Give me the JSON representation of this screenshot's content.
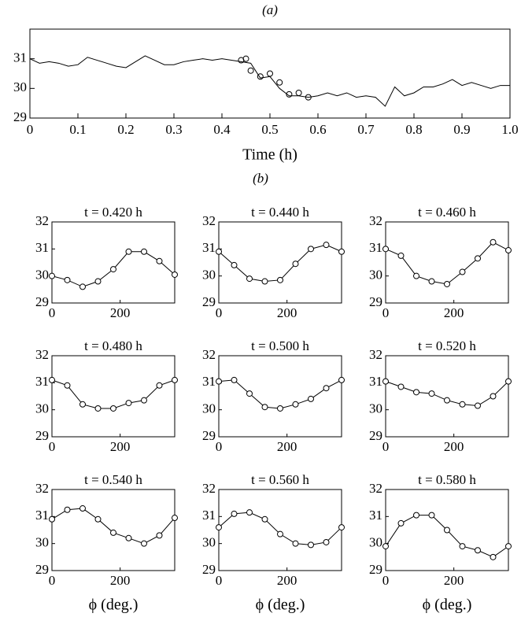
{
  "panel_label_b": "(b)",
  "chart_data": [
    {
      "type": "line",
      "title": "(a)",
      "xlabel": "Time (h)",
      "color": "#000000",
      "x": [
        0,
        0.02,
        0.04,
        0.06,
        0.08,
        0.1,
        0.12,
        0.14,
        0.16,
        0.18,
        0.2,
        0.22,
        0.24,
        0.26,
        0.28,
        0.3,
        0.32,
        0.34,
        0.36,
        0.38,
        0.4,
        0.42,
        0.44,
        0.46,
        0.48,
        0.5,
        0.52,
        0.54,
        0.56,
        0.58,
        0.6,
        0.62,
        0.64,
        0.66,
        0.68,
        0.7,
        0.72,
        0.74,
        0.76,
        0.78,
        0.8,
        0.82,
        0.84,
        0.86,
        0.88,
        0.9,
        0.92,
        0.94,
        0.96,
        0.98,
        1
      ],
      "values": [
        31.0,
        30.85,
        30.9,
        30.85,
        30.75,
        30.8,
        31.05,
        30.95,
        30.85,
        30.75,
        30.7,
        30.9,
        31.1,
        30.95,
        30.8,
        30.8,
        30.9,
        30.95,
        31.0,
        30.95,
        31.0,
        30.95,
        30.9,
        30.85,
        30.35,
        30.4,
        30.0,
        29.75,
        29.75,
        29.7,
        29.75,
        29.85,
        29.75,
        29.85,
        29.7,
        29.75,
        29.7,
        29.4,
        30.05,
        29.75,
        29.85,
        30.05,
        30.05,
        30.15,
        30.3,
        30.1,
        30.2,
        30.1,
        30.0,
        30.1,
        30.1
      ],
      "markers": {
        "x": [
          0.44,
          0.45,
          0.46,
          0.48,
          0.5,
          0.52,
          0.54,
          0.56,
          0.58
        ],
        "values": [
          30.95,
          31.0,
          30.6,
          30.4,
          30.5,
          30.2,
          29.8,
          29.85,
          29.7
        ]
      },
      "xlim": [
        0,
        1
      ],
      "ylim": [
        29,
        32
      ],
      "xticks": [
        0,
        0.1,
        0.2,
        0.3,
        0.4,
        0.5,
        0.6,
        0.7,
        0.8,
        0.9,
        {
          "value": 1,
          "label": "1.0"
        }
      ],
      "yticks": [
        29,
        30,
        31
      ]
    },
    {
      "type": "line",
      "title": "t = 0.420 h",
      "color": "#000000",
      "marker": "circle",
      "x": [
        0,
        45,
        90,
        135,
        180,
        225,
        270,
        315,
        360
      ],
      "values": [
        30.0,
        29.85,
        29.6,
        29.8,
        30.25,
        30.9,
        30.9,
        30.55,
        30.05
      ],
      "xlim": [
        0,
        360
      ],
      "ylim": [
        29,
        32
      ],
      "xticks": [
        0,
        200
      ],
      "yticks": [
        29,
        30,
        31,
        32
      ]
    },
    {
      "type": "line",
      "title": "t = 0.440 h",
      "color": "#000000",
      "marker": "circle",
      "x": [
        0,
        45,
        90,
        135,
        180,
        225,
        270,
        315,
        360
      ],
      "values": [
        30.9,
        30.4,
        29.9,
        29.8,
        29.85,
        30.45,
        31.0,
        31.15,
        30.9
      ],
      "xlim": [
        0,
        360
      ],
      "ylim": [
        29,
        32
      ],
      "xticks": [
        0,
        200
      ],
      "yticks": [
        29,
        30,
        31,
        32
      ]
    },
    {
      "type": "line",
      "title": "t = 0.460 h",
      "color": "#000000",
      "marker": "circle",
      "x": [
        0,
        45,
        90,
        135,
        180,
        225,
        270,
        315,
        360
      ],
      "values": [
        31.0,
        30.75,
        30.0,
        29.8,
        29.7,
        30.15,
        30.65,
        31.25,
        30.95
      ],
      "xlim": [
        0,
        360
      ],
      "ylim": [
        29,
        32
      ],
      "xticks": [
        0,
        200
      ],
      "yticks": [
        29,
        30,
        31,
        32
      ]
    },
    {
      "type": "line",
      "title": "t = 0.480 h",
      "color": "#000000",
      "marker": "circle",
      "x": [
        0,
        45,
        90,
        135,
        180,
        225,
        270,
        315,
        360
      ],
      "values": [
        31.1,
        30.9,
        30.2,
        30.05,
        30.05,
        30.25,
        30.35,
        30.9,
        31.1
      ],
      "xlim": [
        0,
        360
      ],
      "ylim": [
        29,
        32
      ],
      "xticks": [
        0,
        200
      ],
      "yticks": [
        29,
        30,
        31,
        32
      ]
    },
    {
      "type": "line",
      "title": "t = 0.500 h",
      "color": "#000000",
      "marker": "circle",
      "x": [
        0,
        45,
        90,
        135,
        180,
        225,
        270,
        315,
        360
      ],
      "values": [
        31.05,
        31.1,
        30.6,
        30.1,
        30.05,
        30.2,
        30.4,
        30.8,
        31.1
      ],
      "xlim": [
        0,
        360
      ],
      "ylim": [
        29,
        32
      ],
      "xticks": [
        0,
        200
      ],
      "yticks": [
        29,
        30,
        31,
        32
      ]
    },
    {
      "type": "line",
      "title": "t = 0.520 h",
      "color": "#000000",
      "marker": "circle",
      "x": [
        0,
        45,
        90,
        135,
        180,
        225,
        270,
        315,
        360
      ],
      "values": [
        31.05,
        30.85,
        30.65,
        30.6,
        30.35,
        30.2,
        30.15,
        30.5,
        31.05
      ],
      "xlim": [
        0,
        360
      ],
      "ylim": [
        29,
        32
      ],
      "xticks": [
        0,
        200
      ],
      "yticks": [
        29,
        30,
        31,
        32
      ]
    },
    {
      "type": "line",
      "title": "t = 0.540 h",
      "xlabel": "ϕ (deg.)",
      "color": "#000000",
      "marker": "circle",
      "x": [
        0,
        45,
        90,
        135,
        180,
        225,
        270,
        315,
        360
      ],
      "values": [
        30.9,
        31.25,
        31.3,
        30.9,
        30.4,
        30.2,
        30.0,
        30.3,
        30.95
      ],
      "xlim": [
        0,
        360
      ],
      "ylim": [
        29,
        32
      ],
      "xticks": [
        0,
        200
      ],
      "yticks": [
        29,
        30,
        31,
        32
      ]
    },
    {
      "type": "line",
      "title": "t = 0.560 h",
      "xlabel": "ϕ (deg.)",
      "color": "#000000",
      "marker": "circle",
      "x": [
        0,
        45,
        90,
        135,
        180,
        225,
        270,
        315,
        360
      ],
      "values": [
        30.6,
        31.1,
        31.15,
        30.9,
        30.35,
        30.0,
        29.95,
        30.05,
        30.6
      ],
      "xlim": [
        0,
        360
      ],
      "ylim": [
        29,
        32
      ],
      "xticks": [
        0,
        200
      ],
      "yticks": [
        29,
        30,
        31,
        32
      ]
    },
    {
      "type": "line",
      "title": "t = 0.580 h",
      "xlabel": "ϕ (deg.)",
      "color": "#000000",
      "marker": "circle",
      "x": [
        0,
        45,
        90,
        135,
        180,
        225,
        270,
        315,
        360
      ],
      "values": [
        29.9,
        30.75,
        31.05,
        31.05,
        30.5,
        29.9,
        29.75,
        29.5,
        29.9
      ],
      "xlim": [
        0,
        360
      ],
      "ylim": [
        29,
        32
      ],
      "xticks": [
        0,
        200
      ],
      "yticks": [
        29,
        30,
        31,
        32
      ]
    }
  ]
}
